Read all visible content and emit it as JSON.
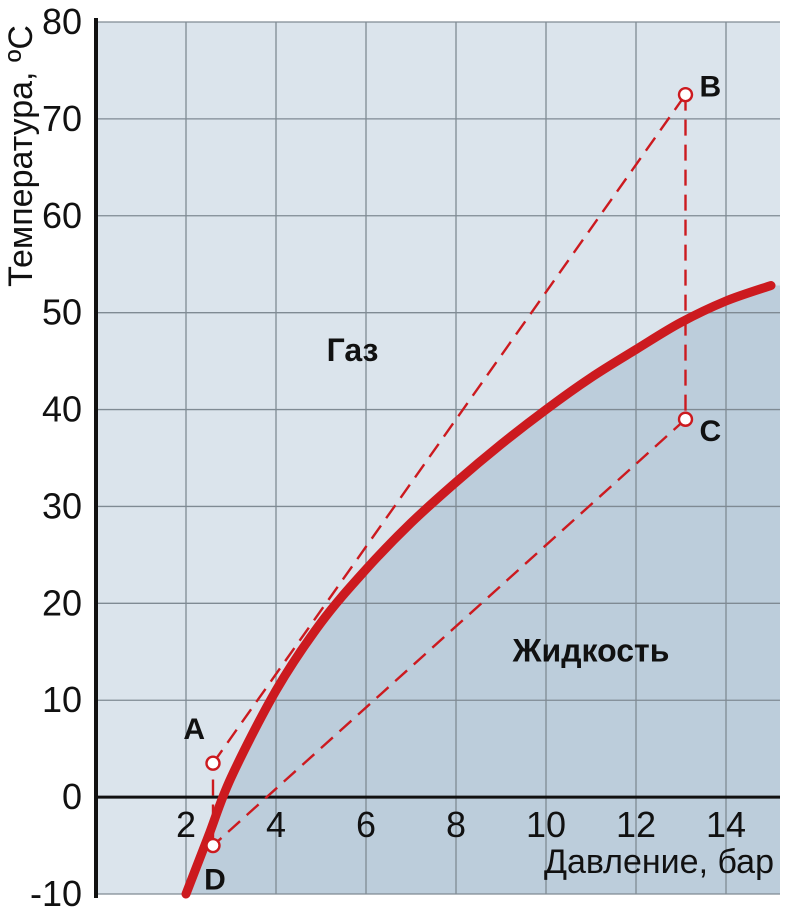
{
  "chart_data": {
    "type": "line",
    "xlabel": "Давление, бар",
    "ylabel": "Температура, ºС",
    "xlim": [
      0,
      15.2
    ],
    "ylim": [
      -10,
      80
    ],
    "x_ticks": [
      2,
      4,
      6,
      8,
      10,
      12,
      14
    ],
    "y_ticks": [
      -10,
      0,
      10,
      20,
      30,
      40,
      50,
      60,
      70,
      80
    ],
    "grid": true,
    "regions": [
      {
        "label": "Газ",
        "x": 5.7,
        "y": 45
      },
      {
        "label": "Жидкость",
        "x": 11.0,
        "y": 14
      }
    ],
    "series": [
      {
        "type": "saturation_curve",
        "color": "#cc1a1f",
        "points": [
          {
            "x": 2.0,
            "y": -10
          },
          {
            "x": 2.5,
            "y": -4
          },
          {
            "x": 3.0,
            "y": 2
          },
          {
            "x": 4.0,
            "y": 11
          },
          {
            "x": 5.0,
            "y": 18
          },
          {
            "x": 6.0,
            "y": 23.5
          },
          {
            "x": 7.0,
            "y": 28.3
          },
          {
            "x": 8.0,
            "y": 32.5
          },
          {
            "x": 9.0,
            "y": 36.4
          },
          {
            "x": 10.0,
            "y": 40.0
          },
          {
            "x": 11.0,
            "y": 43.3
          },
          {
            "x": 12.0,
            "y": 46.2
          },
          {
            "x": 13.0,
            "y": 49.0
          },
          {
            "x": 14.0,
            "y": 51.2
          },
          {
            "x": 15.0,
            "y": 52.8
          }
        ]
      }
    ],
    "cycle": {
      "color": "#cc1a1f",
      "points": [
        {
          "label": "A",
          "x": 2.6,
          "y": 3.5
        },
        {
          "label": "B",
          "x": 13.1,
          "y": 72.5
        },
        {
          "label": "C",
          "x": 13.1,
          "y": 39
        },
        {
          "label": "D",
          "x": 2.6,
          "y": -5
        }
      ],
      "segments": [
        [
          "A",
          "B"
        ],
        [
          "B",
          "C"
        ],
        [
          "C",
          "D"
        ],
        [
          "D",
          "A"
        ]
      ]
    },
    "colors": {
      "gas_bg": "#dbe4ec",
      "liquid_bg": "#bccddb",
      "grid": "#7f8a93",
      "axis": "#111111"
    }
  }
}
